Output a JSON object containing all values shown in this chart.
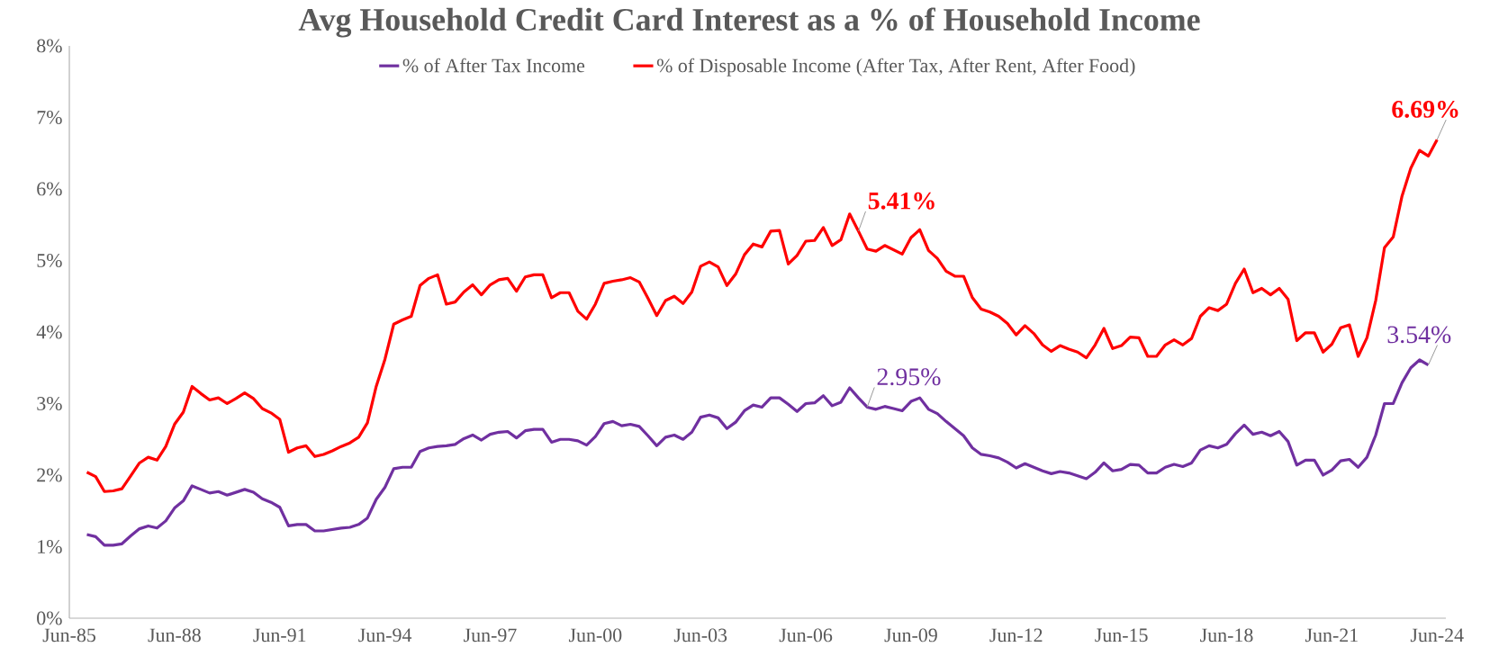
{
  "chart_data": {
    "type": "line",
    "title": "Avg Household Credit Card Interest as a % of Household Income",
    "x": [
      "1985-12",
      "1986-03",
      "1986-06",
      "1986-09",
      "1986-12",
      "1987-03",
      "1987-06",
      "1987-09",
      "1987-12",
      "1988-03",
      "1988-06",
      "1988-09",
      "1988-12",
      "1989-03",
      "1989-06",
      "1989-09",
      "1989-12",
      "1990-03",
      "1990-06",
      "1990-09",
      "1990-12",
      "1991-03",
      "1991-06",
      "1991-09",
      "1991-12",
      "1992-03",
      "1992-06",
      "1992-09",
      "1992-12",
      "1993-03",
      "1993-06",
      "1993-09",
      "1993-12",
      "1994-03",
      "1994-06",
      "1994-09",
      "1994-12",
      "1995-03",
      "1995-06",
      "1995-09",
      "1995-12",
      "1996-03",
      "1996-06",
      "1996-09",
      "1996-12",
      "1997-03",
      "1997-06",
      "1997-09",
      "1997-12",
      "1998-03",
      "1998-06",
      "1998-09",
      "1998-12",
      "1999-03",
      "1999-06",
      "1999-09",
      "1999-12",
      "2000-03",
      "2000-06",
      "2000-09",
      "2000-12",
      "2001-03",
      "2001-06",
      "2001-09",
      "2001-12",
      "2002-03",
      "2002-06",
      "2002-09",
      "2002-12",
      "2003-03",
      "2003-06",
      "2003-09",
      "2003-12",
      "2004-03",
      "2004-06",
      "2004-09",
      "2004-12",
      "2005-03",
      "2005-06",
      "2005-09",
      "2005-12",
      "2006-03",
      "2006-06",
      "2006-09",
      "2006-12",
      "2007-03",
      "2007-06",
      "2007-09",
      "2007-12",
      "2008-03",
      "2008-06",
      "2008-09",
      "2008-12",
      "2009-03",
      "2009-06",
      "2009-09",
      "2009-12",
      "2010-03",
      "2010-06",
      "2010-09",
      "2010-12",
      "2011-03",
      "2011-06",
      "2011-09",
      "2011-12",
      "2012-03",
      "2012-06",
      "2012-09",
      "2012-12",
      "2013-03",
      "2013-06",
      "2013-09",
      "2013-12",
      "2014-03",
      "2014-06",
      "2014-09",
      "2014-12",
      "2015-03",
      "2015-06",
      "2015-09",
      "2015-12",
      "2016-03",
      "2016-06",
      "2016-09",
      "2016-12",
      "2017-03",
      "2017-06",
      "2017-09",
      "2017-12",
      "2018-03",
      "2018-06",
      "2018-09",
      "2018-12",
      "2019-03",
      "2019-06",
      "2019-09",
      "2019-12",
      "2020-03",
      "2020-06",
      "2020-09",
      "2020-12",
      "2021-03",
      "2021-06",
      "2021-09",
      "2021-12",
      "2022-03",
      "2022-06",
      "2022-09",
      "2022-12",
      "2023-03",
      "2023-06",
      "2023-09",
      "2023-12",
      "2024-03",
      "2024-06"
    ],
    "series": [
      {
        "name": "% of After Tax Income",
        "color": "#7030a0",
        "values": [
          1.17,
          1.14,
          1.02,
          1.02,
          1.04,
          1.15,
          1.25,
          1.29,
          1.26,
          1.36,
          1.54,
          1.64,
          1.85,
          1.8,
          1.75,
          1.77,
          1.72,
          1.76,
          1.8,
          1.76,
          1.67,
          1.62,
          1.55,
          1.29,
          1.31,
          1.31,
          1.22,
          1.22,
          1.24,
          1.26,
          1.27,
          1.31,
          1.4,
          1.66,
          1.83,
          2.09,
          2.11,
          2.11,
          2.33,
          2.38,
          2.4,
          2.41,
          2.43,
          2.51,
          2.56,
          2.49,
          2.57,
          2.6,
          2.61,
          2.52,
          2.62,
          2.64,
          2.64,
          2.46,
          2.5,
          2.5,
          2.48,
          2.42,
          2.54,
          2.72,
          2.75,
          2.69,
          2.71,
          2.68,
          2.55,
          2.41,
          2.53,
          2.56,
          2.5,
          2.6,
          2.81,
          2.84,
          2.8,
          2.65,
          2.74,
          2.9,
          2.98,
          2.95,
          3.08,
          3.08,
          2.99,
          2.89,
          3.0,
          3.01,
          3.11,
          2.97,
          3.02,
          3.22,
          3.08,
          2.95,
          2.92,
          2.96,
          2.93,
          2.9,
          3.03,
          3.08,
          2.92,
          2.86,
          2.75,
          2.65,
          2.55,
          2.38,
          2.29,
          2.27,
          2.24,
          2.18,
          2.1,
          2.16,
          2.11,
          2.06,
          2.02,
          2.05,
          2.03,
          1.99,
          1.95,
          2.04,
          2.17,
          2.06,
          2.08,
          2.15,
          2.14,
          2.03,
          2.03,
          2.11,
          2.15,
          2.12,
          2.17,
          2.35,
          2.41,
          2.38,
          2.43,
          2.58,
          2.7,
          2.57,
          2.6,
          2.55,
          2.61,
          2.47,
          2.14,
          2.21,
          2.21,
          2.0,
          2.07,
          2.2,
          2.22,
          2.11,
          2.25,
          2.56,
          3.0,
          3.0,
          3.29,
          3.5,
          3.61,
          3.54,
          null
        ]
      },
      {
        "name": "% of Disposable Income (After Tax, After Rent, After Food)",
        "color": "#ff0000",
        "values": [
          2.04,
          1.98,
          1.77,
          1.78,
          1.81,
          1.99,
          2.17,
          2.25,
          2.21,
          2.4,
          2.71,
          2.88,
          3.24,
          3.14,
          3.05,
          3.08,
          3.0,
          3.07,
          3.15,
          3.07,
          2.93,
          2.87,
          2.78,
          2.32,
          2.38,
          2.41,
          2.26,
          2.29,
          2.34,
          2.4,
          2.45,
          2.53,
          2.73,
          3.24,
          3.62,
          4.11,
          4.17,
          4.22,
          4.65,
          4.75,
          4.8,
          4.39,
          4.42,
          4.56,
          4.66,
          4.52,
          4.66,
          4.73,
          4.75,
          4.57,
          4.77,
          4.8,
          4.8,
          4.48,
          4.55,
          4.55,
          4.29,
          4.18,
          4.39,
          4.68,
          4.71,
          4.73,
          4.76,
          4.7,
          4.47,
          4.23,
          4.44,
          4.5,
          4.4,
          4.56,
          4.92,
          4.98,
          4.91,
          4.65,
          4.81,
          5.08,
          5.23,
          5.19,
          5.41,
          5.42,
          4.95,
          5.07,
          5.27,
          5.28,
          5.46,
          5.21,
          5.29,
          5.65,
          5.41,
          5.16,
          5.13,
          5.21,
          5.15,
          5.09,
          5.32,
          5.43,
          5.14,
          5.03,
          4.85,
          4.78,
          4.78,
          4.48,
          4.32,
          4.28,
          4.22,
          4.12,
          3.96,
          4.09,
          3.98,
          3.82,
          3.73,
          3.81,
          3.76,
          3.72,
          3.64,
          3.82,
          4.05,
          3.77,
          3.81,
          3.93,
          3.92,
          3.66,
          3.66,
          3.82,
          3.89,
          3.82,
          3.91,
          4.22,
          4.34,
          4.3,
          4.39,
          4.68,
          4.88,
          4.55,
          4.61,
          4.52,
          4.61,
          4.46,
          3.88,
          3.99,
          3.99,
          3.72,
          3.83,
          4.06,
          4.1,
          3.66,
          3.92,
          4.44,
          5.18,
          5.33,
          5.9,
          6.29,
          6.54,
          6.46,
          6.69
        ]
      }
    ],
    "annotations": [
      {
        "text": "5.41%",
        "x": "2007-12",
        "y": 5.41
      },
      {
        "text": "2.95%",
        "x": "2008-03",
        "y": 2.95
      },
      {
        "text": "6.69%",
        "x": "2024-06",
        "y": 6.69
      },
      {
        "text": "3.54%",
        "x": "2024-03",
        "y": 3.54
      }
    ],
    "xlim": [
      "1985-06",
      "2024-09"
    ],
    "xticks": [
      {
        "value": "1985-06",
        "label": "Jun-85"
      },
      {
        "value": "1988-06",
        "label": "Jun-88"
      },
      {
        "value": "1991-06",
        "label": "Jun-91"
      },
      {
        "value": "1994-06",
        "label": "Jun-94"
      },
      {
        "value": "1997-06",
        "label": "Jun-97"
      },
      {
        "value": "2000-06",
        "label": "Jun-00"
      },
      {
        "value": "2003-06",
        "label": "Jun-03"
      },
      {
        "value": "2006-06",
        "label": "Jun-06"
      },
      {
        "value": "2009-06",
        "label": "Jun-09"
      },
      {
        "value": "2012-06",
        "label": "Jun-12"
      },
      {
        "value": "2015-06",
        "label": "Jun-15"
      },
      {
        "value": "2018-06",
        "label": "Jun-18"
      },
      {
        "value": "2021-06",
        "label": "Jun-21"
      },
      {
        "value": "2024-06",
        "label": "Jun-24"
      }
    ],
    "ylim": [
      0,
      8
    ],
    "yticks": [
      {
        "value": 0,
        "label": "0%"
      },
      {
        "value": 1,
        "label": "1%"
      },
      {
        "value": 2,
        "label": "2%"
      },
      {
        "value": 3,
        "label": "3%"
      },
      {
        "value": 4,
        "label": "4%"
      },
      {
        "value": 5,
        "label": "5%"
      },
      {
        "value": 6,
        "label": "6%"
      },
      {
        "value": 7,
        "label": "7%"
      },
      {
        "value": 8,
        "label": "8%"
      }
    ],
    "grid": false,
    "legend": "top",
    "marker": "none",
    "line_style": "solid"
  }
}
